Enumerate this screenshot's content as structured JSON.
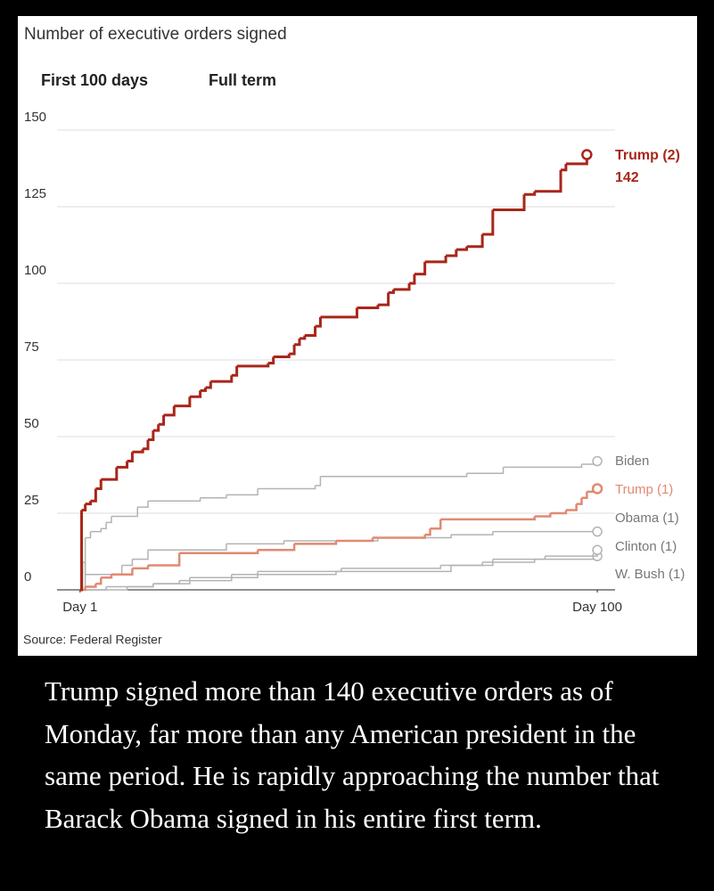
{
  "chart_data": {
    "type": "line",
    "title": "Number of executive orders signed",
    "tabs": [
      "First 100 days",
      "Full term"
    ],
    "source": "Source: Federal Register",
    "xlim": [
      -3.4,
      103.4
    ],
    "xticks": [
      {
        "value": 1,
        "label": "Day 1"
      },
      {
        "value": 100,
        "label": "Day 100"
      }
    ],
    "ylim": [
      0,
      150
    ],
    "yticks": [
      0,
      25,
      50,
      75,
      100,
      125,
      150
    ],
    "grid": true,
    "series": [
      {
        "name": "Trump (2)",
        "color": "#a8261b",
        "x": [
          1,
          1.3,
          2,
          3,
          4,
          5,
          8,
          10,
          11,
          13,
          14,
          15,
          16,
          17,
          19,
          22,
          24,
          25,
          26,
          30,
          31,
          37,
          38,
          41,
          42,
          43,
          44,
          46,
          47,
          54,
          58,
          60,
          61,
          64,
          65,
          67,
          71,
          73,
          75,
          78,
          80,
          86,
          88,
          93,
          94,
          98
        ],
        "values": [
          0,
          26,
          28,
          29,
          33,
          36,
          40,
          42,
          45,
          46,
          49,
          52,
          54,
          57,
          60,
          63,
          65,
          66,
          68,
          70,
          73,
          74,
          76,
          77,
          80,
          82,
          83,
          86,
          89,
          92,
          93,
          97,
          98,
          100,
          103,
          107,
          109,
          111,
          112,
          116,
          124,
          129,
          130,
          137,
          139,
          142
        ]
      },
      {
        "name": "Biden",
        "color": "#b3b3b3",
        "x": [
          1,
          2,
          3,
          5,
          6,
          7,
          12,
          14,
          24,
          29,
          35,
          46,
          47,
          75,
          82,
          97,
          100
        ],
        "values": [
          0,
          17,
          19,
          20,
          22,
          24,
          27,
          29,
          30,
          31,
          33,
          34,
          37,
          38,
          40,
          41,
          42
        ]
      },
      {
        "name": "Trump (1)",
        "color": "#e08a72",
        "x": [
          1,
          2,
          4,
          5,
          7,
          11,
          14,
          20,
          35,
          42,
          50,
          57,
          67,
          68,
          70,
          88,
          91,
          94,
          96,
          97,
          98,
          100
        ],
        "values": [
          0,
          1,
          2,
          4,
          5,
          7,
          8,
          12,
          13,
          15,
          16,
          17,
          18,
          20,
          23,
          24,
          25,
          26,
          28,
          30,
          32,
          33
        ]
      },
      {
        "name": "Obama (1)",
        "color": "#b3b3b3",
        "x": [
          1,
          1.5,
          2,
          9,
          11,
          14,
          29,
          40,
          58,
          72,
          80,
          100
        ],
        "values": [
          0,
          9,
          5,
          8,
          10,
          13,
          15,
          16,
          17,
          18,
          19,
          19
        ]
      },
      {
        "name": "Clinton (1)",
        "color": "#b3b3b3",
        "x": [
          1,
          10,
          15,
          22,
          35,
          51,
          70,
          80,
          90,
          100
        ],
        "values": [
          0,
          1,
          2,
          4,
          6,
          7,
          8,
          10,
          11,
          13
        ]
      },
      {
        "name": "W. Bush (1)",
        "color": "#b3b3b3",
        "x": [
          1,
          6,
          15,
          20,
          30,
          50,
          72,
          78,
          88,
          100
        ],
        "values": [
          0,
          1,
          2,
          3,
          5,
          6,
          8,
          9,
          10,
          11
        ]
      }
    ]
  },
  "caption": "Trump signed more than 140 executive orders as of Monday, far more than any American president in the same period. He is rapidly approaching the number that Barack Obama signed in his entire first term."
}
